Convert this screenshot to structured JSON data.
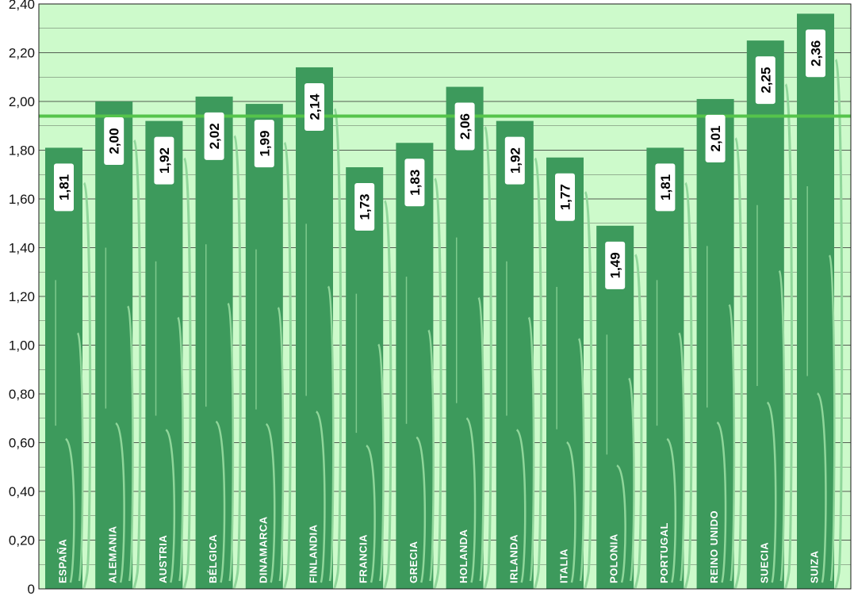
{
  "chart_data": {
    "type": "bar",
    "categories": [
      "ESPAÑA",
      "ALEMANIA",
      "AUSTRIA",
      "BÉLGICA",
      "DINAMARCA",
      "FINLANDIA",
      "FRANCIA",
      "GRECIA",
      "HOLANDA",
      "IRLANDA",
      "ITALIA",
      "POLONIA",
      "PORTUGAL",
      "REINO UNIDO",
      "SUECIA",
      "SUIZA"
    ],
    "values": [
      1.81,
      2.0,
      1.92,
      2.02,
      1.99,
      2.14,
      1.73,
      1.83,
      2.06,
      1.92,
      1.77,
      1.49,
      1.81,
      2.01,
      2.25,
      2.36
    ],
    "value_labels": [
      "1,81",
      "2,00",
      "1,92",
      "2,02",
      "1,99",
      "2,14",
      "1,73",
      "1,83",
      "2,06",
      "1,92",
      "1,77",
      "1,49",
      "1,81",
      "2,01",
      "2,25",
      "2,36"
    ],
    "ylim": [
      0,
      2.4
    ],
    "yticks": [
      0,
      0.2,
      0.4,
      0.6,
      0.8,
      1.0,
      1.2,
      1.4,
      1.6,
      1.8,
      2.0,
      2.2,
      2.4
    ],
    "ytick_labels": [
      "0",
      "0,20",
      "0,40",
      "0,60",
      "0,80",
      "1,00",
      "1,20",
      "1,40",
      "1,60",
      "1,80",
      "2,00",
      "2,20",
      "2,40"
    ],
    "reference_line": 1.94,
    "grid": true,
    "colors": {
      "plot_background": "#cdfacb",
      "bar": "#3d9a5c",
      "bar_light": "#8fd69a",
      "reference_line": "#55c44b",
      "grid": "#2a2a2a"
    }
  }
}
